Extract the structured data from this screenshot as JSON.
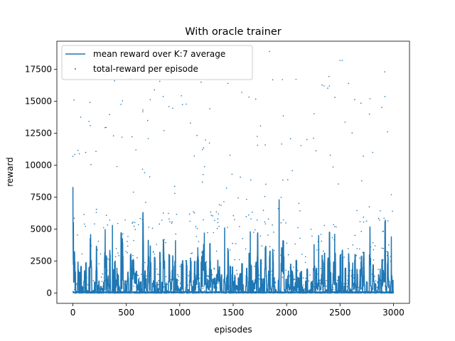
{
  "chart_data": {
    "type": "line+scatter",
    "title": "With oracle trainer",
    "xlabel": "episodes",
    "ylabel": "reward",
    "xlim": [
      -150,
      3150
    ],
    "ylim": [
      -800,
      19700
    ],
    "xticks": [
      0,
      500,
      1000,
      1500,
      2000,
      2500,
      3000
    ],
    "yticks": [
      0,
      2500,
      5000,
      7500,
      10000,
      12500,
      15000,
      17500
    ],
    "legend_position": "upper-left",
    "grid": false,
    "color": "#1f77b4",
    "episodes_total": 3000,
    "series": [
      {
        "name": "mean reward over K:7 average",
        "kind": "line",
        "notable_points": [
          [
            0,
            8300
          ],
          [
            5,
            5500
          ],
          [
            20,
            300
          ],
          [
            370,
            5300
          ],
          [
            960,
            4100
          ],
          [
            1230,
            4700
          ],
          [
            1420,
            5100
          ],
          [
            1660,
            4800
          ],
          [
            1930,
            7300
          ],
          [
            2300,
            4500
          ],
          [
            2450,
            4600
          ],
          [
            2980,
            4400
          ],
          [
            3000,
            100
          ]
        ]
      },
      {
        "name": "total-reward per episode",
        "kind": "scatter",
        "notable_points": [
          [
            0,
            15300
          ],
          [
            10,
            15100
          ],
          [
            0,
            10700
          ],
          [
            5,
            5500
          ],
          [
            60,
            10900
          ],
          [
            120,
            11000
          ],
          [
            380,
            12300
          ],
          [
            390,
            16600
          ],
          [
            460,
            12200
          ],
          [
            590,
            11200
          ],
          [
            700,
            13500
          ],
          [
            1100,
            13300
          ],
          [
            1200,
            16500
          ],
          [
            1450,
            16400
          ],
          [
            1580,
            15700
          ],
          [
            1840,
            18900
          ],
          [
            1960,
            16700
          ],
          [
            2350,
            16200
          ],
          [
            2400,
            16200
          ],
          [
            2500,
            18200
          ],
          [
            2520,
            18200
          ],
          [
            2580,
            16400
          ],
          [
            2780,
            15200
          ],
          [
            2990,
            16000
          ],
          [
            2990,
            10300
          ],
          [
            2980,
            7700
          ],
          [
            2990,
            6400
          ]
        ]
      }
    ]
  }
}
